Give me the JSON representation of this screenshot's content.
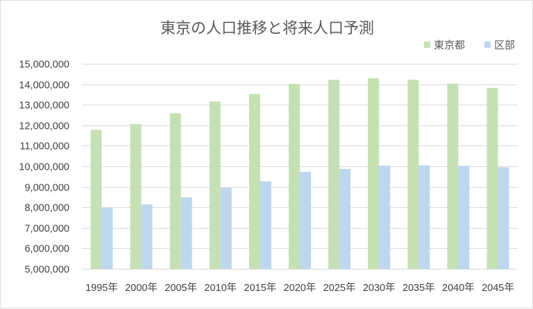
{
  "chart_data": {
    "type": "bar",
    "title": "東京の人口推移と将来人口予測",
    "categories": [
      "1995年",
      "2000年",
      "2005年",
      "2010年",
      "2015年",
      "2020年",
      "2025年",
      "2030年",
      "2035年",
      "2040年",
      "2045年"
    ],
    "series": [
      {
        "name": "東京都",
        "color": "#c5e0b4",
        "values": [
          11770000,
          12060000,
          12580000,
          13160000,
          13520000,
          14020000,
          14220000,
          14290000,
          14220000,
          14030000,
          13820000
        ]
      },
      {
        "name": "区部",
        "color": "#bdd7ee",
        "values": [
          7970000,
          8140000,
          8490000,
          8950000,
          9270000,
          9730000,
          9870000,
          10030000,
          10040000,
          10020000,
          9950000
        ]
      }
    ],
    "y_ticks": [
      "5,000,000",
      "6,000,000",
      "7,000,000",
      "8,000,000",
      "9,000,000",
      "10,000,000",
      "11,000,000",
      "12,000,000",
      "13,000,000",
      "14,000,000",
      "15,000,000"
    ],
    "ylim": [
      5000000,
      15000000
    ],
    "y_step": 1000000,
    "grid": true,
    "legend_position": "top-right"
  }
}
